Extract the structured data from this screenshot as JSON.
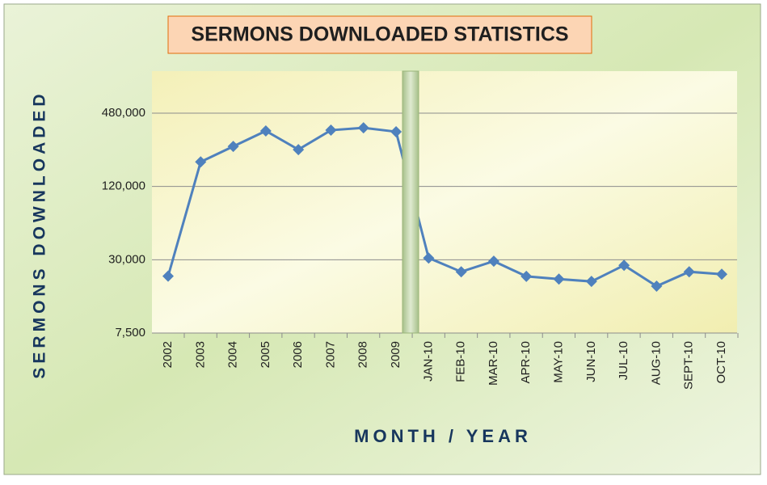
{
  "chart_data": {
    "type": "line",
    "title": "SERMONS DOWNLOADED STATISTICS",
    "x_label": "MONTH / YEAR",
    "y_label": "SERMONS DOWNLOADED",
    "categories": [
      "2002",
      "2003",
      "2004",
      "2005",
      "2006",
      "2007",
      "2008",
      "2009",
      "JAN-10",
      "FEB-10",
      "MAR-10",
      "APR-10",
      "MAY-10",
      "JUN-10",
      "JUL-10",
      "AUG-10",
      "SEPT-10",
      "OCT-10"
    ],
    "series": [
      {
        "name": "Sermons downloaded",
        "color": "#4f81bd",
        "values": [
          22000,
          191000,
          256000,
          343000,
          241000,
          348000,
          364000,
          338000,
          31000,
          23900,
          29200,
          21900,
          20800,
          19900,
          27000,
          18200,
          23900,
          22800
        ]
      }
    ],
    "log_scale": true,
    "ylim": [
      7500,
      1000000
    ],
    "yticks": [
      {
        "value": 7500,
        "label": "7,500"
      },
      {
        "value": 30000,
        "label": "30,000"
      },
      {
        "value": 120000,
        "label": "120,000"
      },
      {
        "value": 480000,
        "label": "480,000"
      }
    ],
    "grid": true
  }
}
